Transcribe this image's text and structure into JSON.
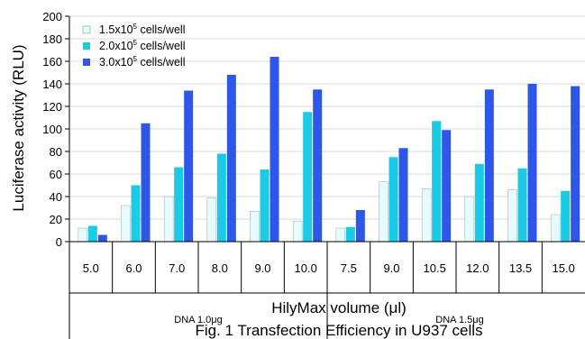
{
  "chart_data": {
    "type": "bar",
    "ylabel": "Luciferase activity (RLU)",
    "xlabel": "HilyMax volume (μl)",
    "caption": "Fig. 1 Transfection Efficiency in U937 cells",
    "ylim": [
      0,
      200
    ],
    "yticks": [
      0,
      20,
      40,
      60,
      80,
      100,
      120,
      140,
      160,
      180,
      200
    ],
    "gridlines": true,
    "legend_position": "top-left",
    "categories": [
      "5.0",
      "6.0",
      "7.0",
      "8.0",
      "9.0",
      "10.0",
      "7.5",
      "9.0",
      "10.5",
      "12.0",
      "13.5",
      "15.0"
    ],
    "groups": [
      {
        "label": "DNA 1.0μg",
        "categories": [
          "5.0",
          "6.0",
          "7.0",
          "8.0",
          "9.0",
          "10.0"
        ]
      },
      {
        "label": "DNA 1.5μg",
        "categories": [
          "7.5",
          "9.0",
          "10.5",
          "12.0",
          "13.5",
          "15.0"
        ]
      }
    ],
    "series": [
      {
        "name_base": "1.5x10",
        "name_exp": "5",
        "name_suffix": " cells/well",
        "color": "#e6fbfd",
        "values": [
          12,
          32,
          40,
          39,
          27,
          18,
          12,
          53,
          47,
          40,
          46,
          24
        ]
      },
      {
        "name_base": "2.0x10",
        "name_exp": "5",
        "name_suffix": " cells/well",
        "color": "#19cbe6",
        "values": [
          14,
          50,
          66,
          78,
          64,
          115,
          13,
          75,
          107,
          69,
          65,
          45
        ]
      },
      {
        "name_base": "3.0x10",
        "name_exp": "5",
        "name_suffix": " cells/well",
        "color": "#2e57ea",
        "values": [
          6,
          105,
          134,
          148,
          164,
          135,
          28,
          83,
          99,
          135,
          140,
          138
        ]
      }
    ]
  }
}
